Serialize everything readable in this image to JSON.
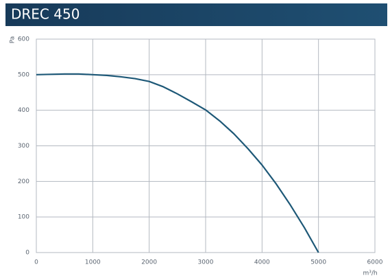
{
  "chart_data": {
    "type": "line",
    "title": "DREC 450",
    "y_label": "Pa",
    "x_label": "m³/h",
    "x": [
      0,
      250,
      500,
      750,
      1000,
      1250,
      1500,
      1750,
      2000,
      2250,
      2500,
      2750,
      3000,
      3250,
      3500,
      3750,
      4000,
      4250,
      4500,
      4750,
      5000
    ],
    "series": [
      {
        "color": "#1d5877",
        "values": [
          500,
          501,
          502,
          502,
          500,
          498,
          494,
          489,
          481,
          466,
          446,
          424,
          401,
          370,
          334,
          292,
          246,
          193,
          134,
          70,
          0
        ]
      }
    ],
    "xlim": [
      0,
      6000
    ],
    "xticks": [
      0,
      1000,
      2000,
      3000,
      4000,
      5000,
      6000
    ],
    "ylim": [
      0,
      600
    ],
    "yticks": [
      0,
      100,
      200,
      300,
      400,
      500,
      600
    ],
    "grid": true
  }
}
